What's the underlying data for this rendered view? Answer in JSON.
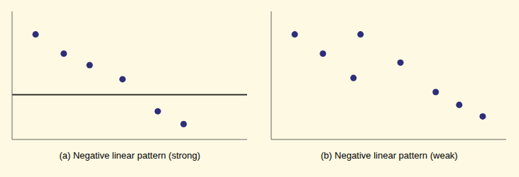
{
  "chart_data": [
    {
      "type": "scatter",
      "title": "(a) Negative linear pattern (strong)",
      "x": [
        0.1,
        0.22,
        0.33,
        0.47,
        0.62,
        0.73
      ],
      "values": [
        0.82,
        0.67,
        0.58,
        0.47,
        0.22,
        0.12
      ],
      "hline": 0.35,
      "xlim": [
        0,
        1
      ],
      "ylim": [
        0,
        1
      ],
      "tick_labels": false,
      "color": "#2e2e7a"
    },
    {
      "type": "scatter",
      "title": "(b) Negative linear pattern (weak)",
      "x": [
        0.1,
        0.22,
        0.35,
        0.38,
        0.55,
        0.7,
        0.8,
        0.9
      ],
      "values": [
        0.82,
        0.67,
        0.48,
        0.82,
        0.6,
        0.37,
        0.27,
        0.18
      ],
      "xlim": [
        0,
        1
      ],
      "ylim": [
        0,
        1
      ],
      "tick_labels": false,
      "color": "#2e2e7a"
    }
  ]
}
